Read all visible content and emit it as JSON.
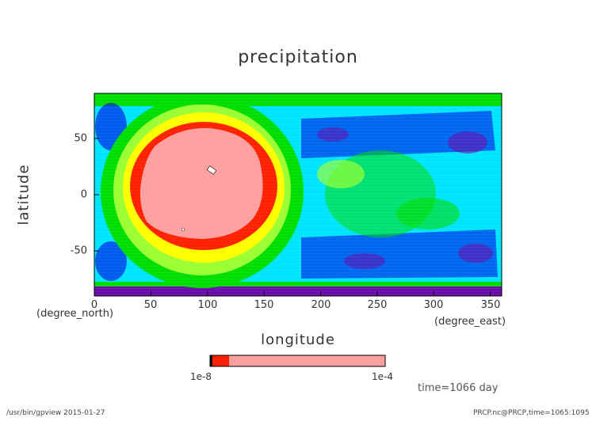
{
  "chart_data": {
    "type": "heatmap",
    "title": "precipitation",
    "xlabel": "longitude",
    "ylabel": "latitude",
    "x_unit": "(degree_east)",
    "y_unit": "(degree_north)",
    "xlim": [
      0,
      360
    ],
    "ylim": [
      -90,
      90
    ],
    "x_ticks": [
      "0",
      "50",
      "100",
      "150",
      "200",
      "250",
      "300",
      "350"
    ],
    "y_ticks": [
      "50",
      "0",
      "-50"
    ],
    "colorbar": {
      "min_label": "1e-8",
      "max_label": "1e-4",
      "colors": [
        "#6a0dad",
        "#0000e0",
        "#00e5ff",
        "#00dd00",
        "#9aff33",
        "#ffff00",
        "#ff2200",
        "#ffa0a0"
      ]
    },
    "annotations": [
      "time=1066 day"
    ],
    "features": {
      "high_precip_center_lon": 97,
      "high_precip_center_lat": 3,
      "high_precip_peak": "1e-4"
    }
  },
  "footer": {
    "left": "/usr/bin/gpview  2015-01-27",
    "right": "PRCP.nc@PRCP,time=1065:1095"
  }
}
